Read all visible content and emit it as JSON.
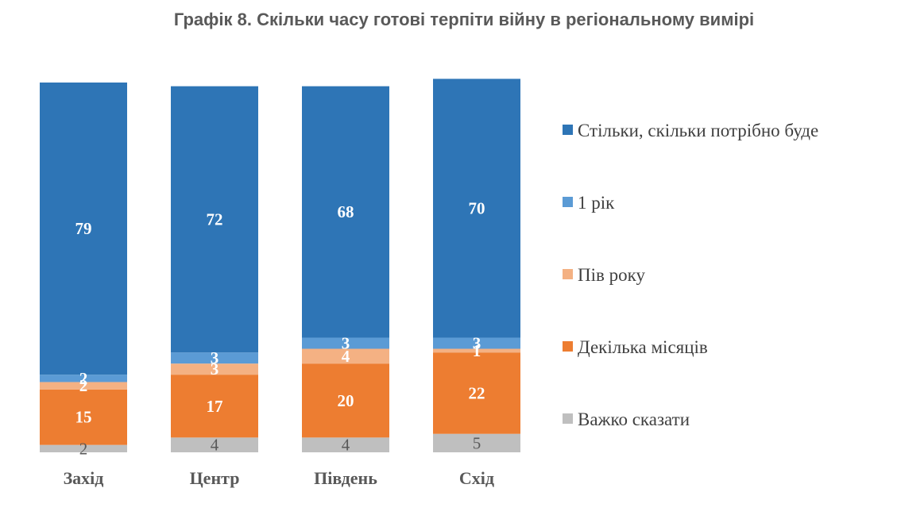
{
  "chart_data": {
    "type": "bar",
    "stacked": true,
    "title": "Графік 8. Скільки часу готові терпіти війну в регіональному вимірі",
    "categories": [
      "Захід",
      "Центр",
      "Південь",
      "Схід"
    ],
    "series": [
      {
        "name": "Важко сказати",
        "color": "#bfbfbf",
        "values": [
          2,
          4,
          4,
          5
        ]
      },
      {
        "name": "Декілька місяців",
        "color": "#ed7d31",
        "values": [
          15,
          17,
          20,
          22
        ]
      },
      {
        "name": "Пів року",
        "color": "#f4b183",
        "values": [
          2,
          3,
          4,
          1
        ]
      },
      {
        "name": "1 рік",
        "color": "#5b9bd5",
        "values": [
          2,
          3,
          3,
          3
        ]
      },
      {
        "name": "Стільки, скільки потрібно буде",
        "color": "#2e75b6",
        "values": [
          79,
          72,
          68,
          70
        ]
      }
    ],
    "legend_order": [
      "Стільки, скільки потрібно буде",
      "1 рік",
      "Пів року",
      "Декілька місяців",
      "Важко сказати"
    ],
    "legend_position": "right",
    "ylim": [
      0,
      100
    ],
    "grid": false
  }
}
